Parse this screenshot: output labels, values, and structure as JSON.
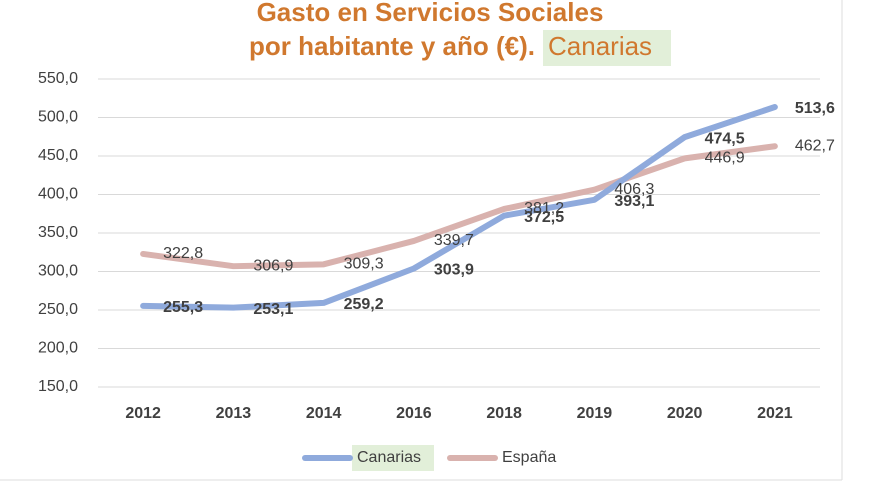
{
  "chart_data": {
    "type": "line",
    "title": [
      "Gasto en Servicios Sociales",
      "por habitante y año (€).",
      "Canarias"
    ],
    "categories": [
      "2012",
      "2013",
      "2014",
      "2016",
      "2018",
      "2019",
      "2020",
      "2021"
    ],
    "series": [
      {
        "name": "Canarias",
        "color": "#8faadc",
        "values": [
          255.3,
          253.1,
          259.2,
          303.9,
          372.5,
          393.1,
          474.5,
          513.6
        ],
        "value_labels": [
          "255,3",
          "253,1",
          "259,2",
          "303,9",
          "372,5",
          "393,1",
          "474,5",
          "513,6"
        ]
      },
      {
        "name": "España",
        "color": "#d9b2ae",
        "values": [
          322.8,
          306.9,
          309.3,
          339.7,
          381.2,
          406.3,
          446.9,
          462.7
        ],
        "value_labels": [
          "322,8",
          "306,9",
          "309,3",
          "339,7",
          "381,2",
          "406,3",
          "446,9",
          "462,7"
        ]
      }
    ],
    "ylim": [
      150,
      550
    ],
    "yticks": [
      {
        "value": 150,
        "label": "150,0"
      },
      {
        "value": 200,
        "label": "200,0"
      },
      {
        "value": 250,
        "label": "250,0"
      },
      {
        "value": 300,
        "label": "300,0"
      },
      {
        "value": 350,
        "label": "350,0"
      },
      {
        "value": 400,
        "label": "400,0"
      },
      {
        "value": 450,
        "label": "450,0"
      },
      {
        "value": 500,
        "label": "500,0"
      },
      {
        "value": 550,
        "label": "550,0"
      }
    ],
    "grid": true
  }
}
